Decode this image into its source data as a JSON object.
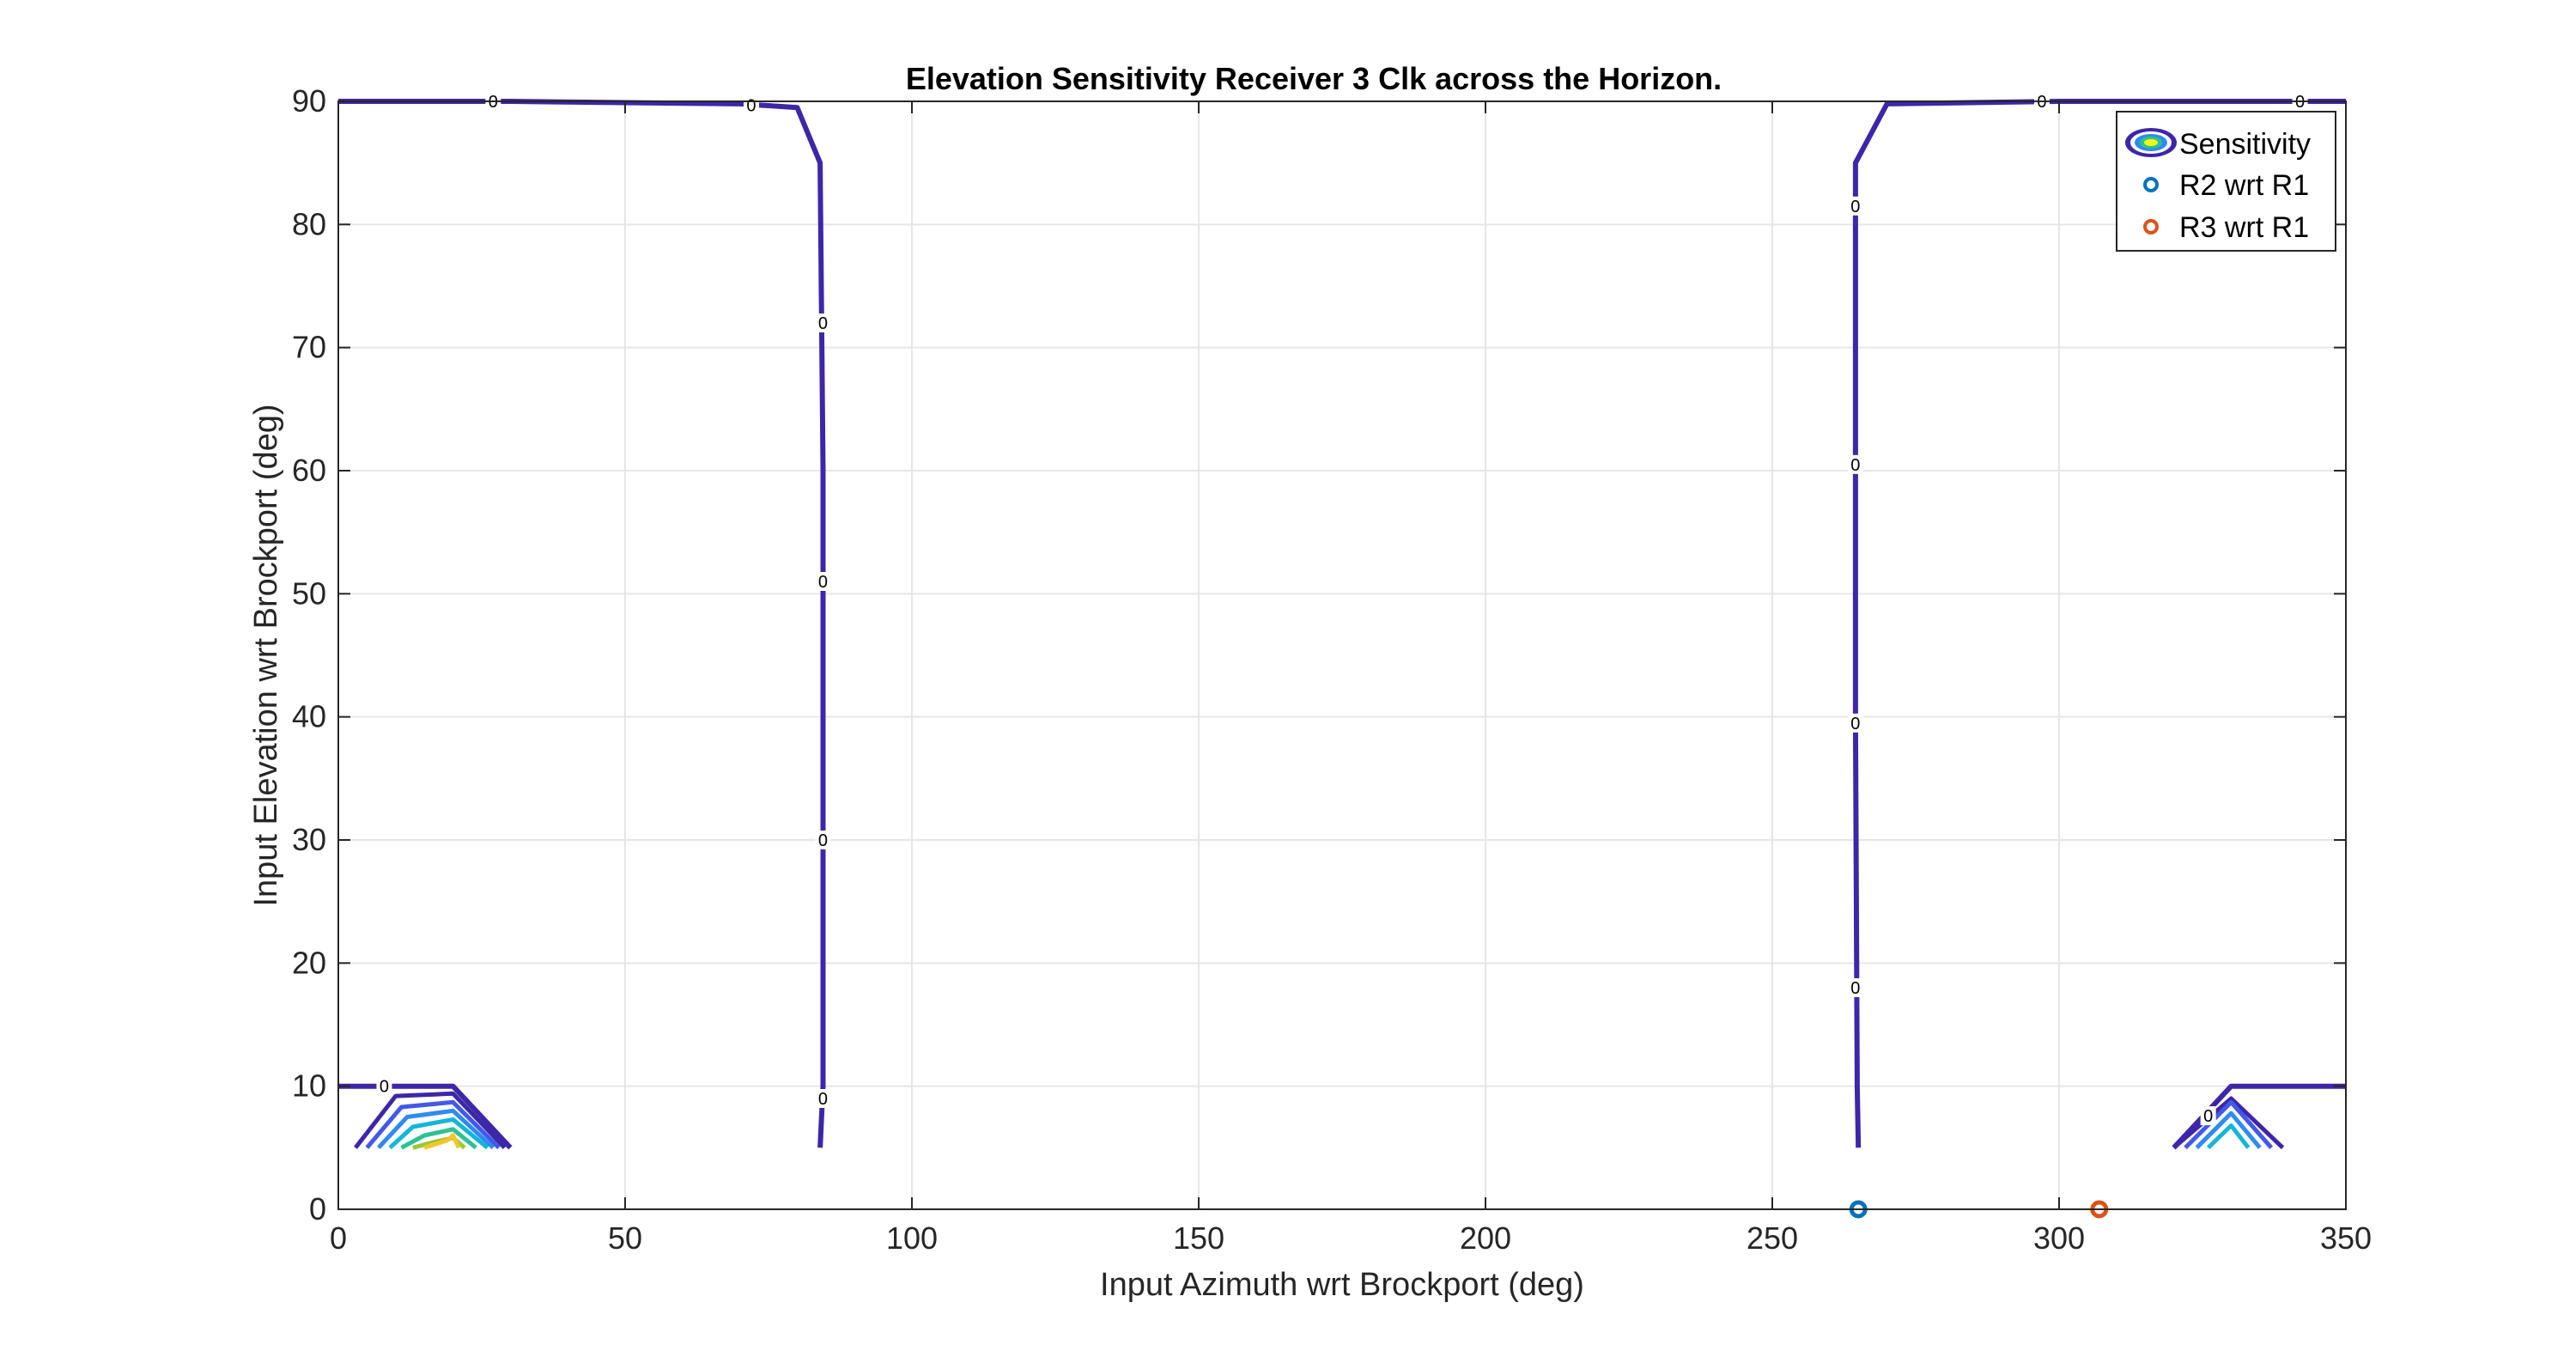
{
  "chart_data": {
    "type": "contour",
    "title": "Elevation Sensitivity Receiver 3 Clk across the Horizon.",
    "xlabel": "Input Azimuth wrt Brockport (deg)",
    "ylabel": "Input Elevation wrt Brockport (deg)",
    "xlim": [
      0,
      350
    ],
    "ylim": [
      0,
      90
    ],
    "xticks": [
      0,
      50,
      100,
      150,
      200,
      250,
      300,
      350
    ],
    "yticks": [
      0,
      10,
      20,
      30,
      40,
      50,
      60,
      70,
      80,
      90
    ],
    "grid": true,
    "legend": {
      "placement": "top-right",
      "entries": [
        "Sensitivity",
        "R2 wrt R1",
        "R3 wrt R1"
      ]
    },
    "contour_level_label": "0",
    "zero_contours": [
      {
        "points": [
          [
            0,
            90
          ],
          [
            30,
            90
          ],
          [
            70,
            89.8
          ],
          [
            80,
            89.5
          ],
          [
            84,
            85
          ],
          [
            84.5,
            60
          ],
          [
            84.5,
            30
          ],
          [
            84.5,
            10
          ],
          [
            84,
            5
          ]
        ]
      },
      {
        "points": [
          [
            265,
            5
          ],
          [
            264.8,
            10
          ],
          [
            264.5,
            40
          ],
          [
            264.5,
            70
          ],
          [
            264.5,
            85
          ],
          [
            270,
            89.8
          ],
          [
            300,
            90
          ],
          [
            350,
            90
          ]
        ]
      },
      {
        "points": [
          [
            0,
            10
          ],
          [
            20,
            10
          ],
          [
            30,
            5
          ]
        ]
      },
      {
        "points": [
          [
            350,
            10
          ],
          [
            330,
            10
          ],
          [
            320,
            5
          ]
        ]
      }
    ],
    "zero_label_positions": [
      [
        27,
        90
      ],
      [
        72,
        89.7
      ],
      [
        84.5,
        72
      ],
      [
        84.5,
        51
      ],
      [
        84.5,
        30
      ],
      [
        84.5,
        9
      ],
      [
        264.5,
        81.5
      ],
      [
        264.5,
        60.5
      ],
      [
        264.5,
        39.5
      ],
      [
        264.5,
        18
      ],
      [
        297,
        90
      ],
      [
        342,
        90
      ],
      [
        8,
        10
      ],
      [
        326,
        7.6
      ]
    ],
    "low_elevation_contours": [
      {
        "color": "#3e26a8",
        "points": [
          [
            3,
            5
          ],
          [
            10,
            9.2
          ],
          [
            20,
            9.4
          ],
          [
            29,
            5
          ]
        ]
      },
      {
        "color": "#4259e8",
        "points": [
          [
            5,
            5
          ],
          [
            11,
            8.3
          ],
          [
            20,
            8.7
          ],
          [
            28,
            5
          ]
        ]
      },
      {
        "color": "#2f8bf0",
        "points": [
          [
            7,
            5
          ],
          [
            12,
            7.5
          ],
          [
            20,
            8
          ],
          [
            27,
            5
          ]
        ]
      },
      {
        "color": "#14b6d6",
        "points": [
          [
            9,
            5
          ],
          [
            13,
            6.7
          ],
          [
            20,
            7.3
          ],
          [
            26,
            5
          ]
        ]
      },
      {
        "color": "#2fc096",
        "points": [
          [
            11,
            5
          ],
          [
            15,
            6
          ],
          [
            20,
            6.5
          ],
          [
            24,
            5
          ]
        ]
      },
      {
        "color": "#9bc736",
        "points": [
          [
            13,
            5
          ],
          [
            17,
            5.5
          ],
          [
            20,
            5.8
          ],
          [
            22,
            5
          ]
        ]
      },
      {
        "color": "#f2c729",
        "points": [
          [
            15,
            5
          ],
          [
            19,
            5.6
          ],
          [
            20,
            6
          ],
          [
            21,
            5
          ]
        ]
      },
      {
        "color": "#3e26a8",
        "points": [
          [
            320,
            5
          ],
          [
            330,
            9
          ],
          [
            339,
            5
          ]
        ]
      },
      {
        "color": "#4259e8",
        "points": [
          [
            322,
            5
          ],
          [
            330,
            8.7
          ],
          [
            337,
            5
          ]
        ]
      },
      {
        "color": "#2f8bf0",
        "points": [
          [
            324,
            5
          ],
          [
            330,
            7.8
          ],
          [
            335,
            5
          ]
        ]
      },
      {
        "color": "#14b6d6",
        "points": [
          [
            326,
            5
          ],
          [
            330,
            6.8
          ],
          [
            333,
            5
          ]
        ]
      }
    ],
    "series": [
      {
        "name": "R2 wrt R1",
        "color": "#0072bd",
        "points": [
          [
            265,
            0
          ]
        ]
      },
      {
        "name": "R3 wrt R1",
        "color": "#d95319",
        "points": [
          [
            307,
            0
          ]
        ]
      }
    ],
    "contour_color": "#3e26a8"
  }
}
